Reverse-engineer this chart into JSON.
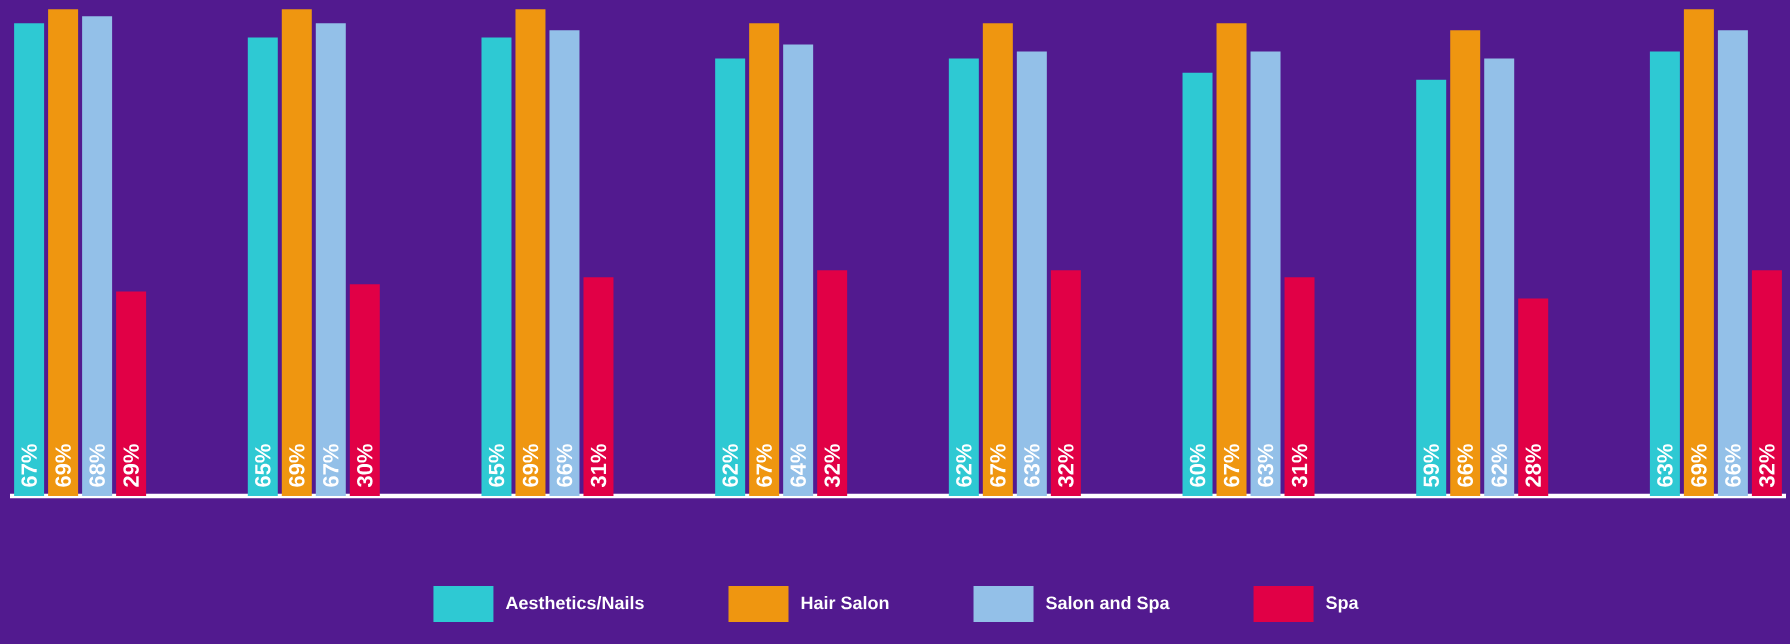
{
  "chart_data": {
    "type": "bar",
    "categories": [
      null,
      null,
      null,
      null,
      null,
      null,
      null,
      null
    ],
    "series": [
      {
        "name": "Aesthetics/Nails",
        "color": "#2ec9d3",
        "values": [
          67,
          65,
          65,
          62,
          62,
          60,
          59,
          63
        ],
        "value_labels": [
          "67%",
          "65%",
          "65%",
          "62%",
          "62%",
          "60%",
          "59%",
          "63%"
        ]
      },
      {
        "name": "Hair Salon",
        "color": "#ef9610",
        "values": [
          69,
          69,
          69,
          67,
          67,
          67,
          66,
          69
        ],
        "value_labels": [
          "69%",
          "69%",
          "69%",
          "67%",
          "67%",
          "67%",
          "66%",
          "69%"
        ]
      },
      {
        "name": "Salon and Spa",
        "color": "#93c0e8",
        "values": [
          68,
          67,
          66,
          64,
          63,
          63,
          62,
          66
        ],
        "value_labels": [
          "68%",
          "67%",
          "66%",
          "64%",
          "63%",
          "63%",
          "62%",
          "66%"
        ]
      },
      {
        "name": "Spa",
        "color": "#e10046",
        "values": [
          29,
          30,
          31,
          32,
          32,
          31,
          28,
          32
        ],
        "value_labels": [
          "29%",
          "30%",
          "31%",
          "32%",
          "32%",
          "31%",
          "28%",
          "32%"
        ]
      }
    ],
    "legend": "bottom"
  }
}
